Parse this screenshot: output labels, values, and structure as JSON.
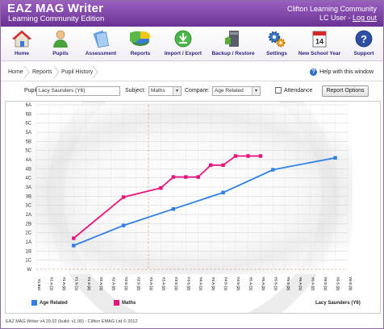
{
  "header": {
    "title": "EAZ MAG Writer",
    "subtitle": "Learning Community Edition",
    "organisation": "Clifton Learning Community",
    "user_prefix": "LC User - ",
    "logout_label": "Log out"
  },
  "toolbar": {
    "items": [
      {
        "label": "Home",
        "icon": "home-icon"
      },
      {
        "label": "Pupils",
        "icon": "pupil-icon"
      },
      {
        "label": "Assessment",
        "icon": "assessment-icon"
      },
      {
        "label": "Reports",
        "icon": "pie-chart-icon"
      },
      {
        "label": "Import / Export",
        "icon": "import-export-icon"
      },
      {
        "label": "Backup / Restore",
        "icon": "backup-icon"
      },
      {
        "label": "Settings",
        "icon": "gear-icon"
      },
      {
        "label": "New School Year",
        "icon": "calendar-icon"
      },
      {
        "label": "Support",
        "icon": "help-icon"
      }
    ],
    "calendar_day": "14"
  },
  "breadcrumb": [
    "Home",
    "Reports",
    "Pupil History"
  ],
  "help_link": "Help with this window",
  "filters": {
    "pupil_label": "Pupil:",
    "pupil_value": "Lacy Saunders (Y6)",
    "subject_label": "Subject:",
    "subject_value": "Maths",
    "compare_label": "Compare:",
    "compare_value": "Age Related",
    "attendance_label": "Attendance",
    "report_options_label": "Report Options"
  },
  "colors": {
    "age_related": "#2f7fe6",
    "maths": "#e8127a",
    "header_top": "#9a5fbf",
    "header_bottom": "#6a3294"
  },
  "chart_data": {
    "type": "line",
    "y_categories": [
      "W",
      "1C",
      "1B",
      "1A",
      "2C",
      "2B",
      "2A",
      "3C",
      "3B",
      "3A",
      "4C",
      "4B",
      "4A",
      "5C",
      "5B",
      "5A",
      "6C",
      "6B",
      "6A"
    ],
    "x": [
      "Y1 Ent",
      "Y1 A (1)",
      "Y1 A (2)",
      "Y1 S (1)",
      "Y1 S (2)",
      "Y2 A (1)",
      "Y2 A (2)",
      "Y2 S (1)",
      "Y2 S (2)",
      "Y3 A (1)",
      "Y3 A (2)",
      "Y3 S (1)",
      "Y3 S (2)",
      "Y4 A (1)",
      "Y4 A (2)",
      "Y4 S (1)",
      "Y4 S (2)",
      "Y5 A (1)",
      "Y5 A (2)",
      "Y5 S (1)",
      "Y5 S (2)",
      "Y6 A (1)",
      "Y6 A (2)",
      "Y6 S (1)",
      "Y6 S (2)",
      "Y6 S (3)"
    ],
    "series": [
      {
        "name": "Age Related",
        "points": [
          [
            3,
            2.6
          ],
          [
            7,
            4.8
          ],
          [
            11,
            6.6
          ],
          [
            15,
            8.4
          ],
          [
            19,
            10.9
          ],
          [
            24,
            12.2
          ]
        ]
      },
      {
        "name": "Maths",
        "points": [
          [
            3,
            3.4
          ],
          [
            7,
            7.9
          ],
          [
            10,
            8.9
          ],
          [
            11,
            10.1
          ],
          [
            12,
            10.1
          ],
          [
            13,
            10.1
          ],
          [
            14,
            11.4
          ],
          [
            15,
            11.4
          ],
          [
            16,
            12.4
          ],
          [
            17,
            12.4
          ],
          [
            18,
            12.4
          ]
        ]
      }
    ],
    "legend": [
      {
        "name": "Age Related"
      },
      {
        "name": "Maths"
      }
    ],
    "pupil_caption": "Lacy Saunders (Y6)",
    "ylim": [
      "W",
      "6A"
    ],
    "grid": true,
    "legend_position": "bottom-left"
  },
  "footer": "EAZ MAG Writer v4.29.02 (build: v1.00) - Clifton EMAG Ltd © 2012"
}
